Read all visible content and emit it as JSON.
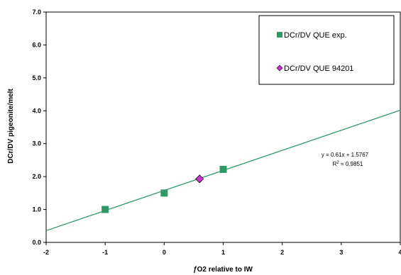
{
  "chart_data": {
    "type": "scatter",
    "xlabel_prefix": "ƒ",
    "xlabel_rest": "O2 relative to IW",
    "ylabel": "DCr/DV pigeonite/melt",
    "xlim": [
      -2,
      4
    ],
    "ylim": [
      0,
      7
    ],
    "x_ticks": [
      "-2",
      "-1",
      "0",
      "1",
      "2",
      "3",
      "4"
    ],
    "y_ticks": [
      "0.0",
      "1.0",
      "2.0",
      "3.0",
      "4.0",
      "5.0",
      "6.0",
      "7.0"
    ],
    "grid": false,
    "legend_position": "top-right",
    "series": [
      {
        "name": "DCr/DV QUE exp.",
        "marker": "square",
        "color": "#2e9966",
        "points": [
          {
            "x": -1,
            "y": 1.0
          },
          {
            "x": 0,
            "y": 1.5
          },
          {
            "x": 1,
            "y": 2.22
          }
        ]
      },
      {
        "name": "DCr/DV QUE 94201",
        "marker": "diamond",
        "color": "#cc33cc",
        "points": [
          {
            "x": 0.6,
            "y": 1.93
          }
        ]
      }
    ],
    "trendline": {
      "slope": 0.61,
      "intercept": 1.5767,
      "color": "#2e9966",
      "equation": "y = 0.61x + 1.5767",
      "r2_prefix": "R",
      "r2_exp": "2",
      "r2_suffix": " = 0.9851"
    }
  }
}
